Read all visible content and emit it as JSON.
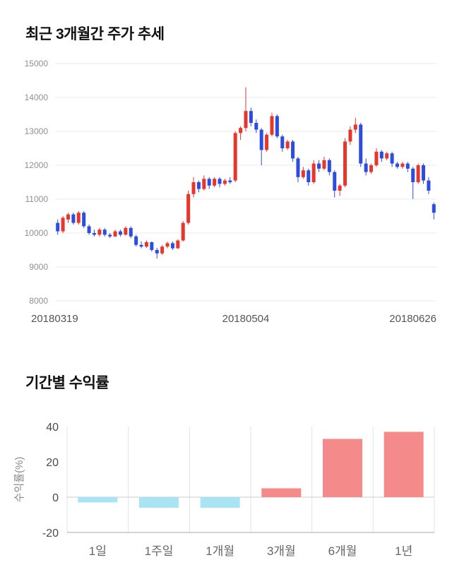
{
  "titles": {
    "price_trend": "최근 3개월간 주가 추세",
    "period_returns": "기간별 수익률"
  },
  "chart_data": [
    {
      "name": "price-candlestick",
      "type": "candlestick",
      "title": "최근 3개월간 주가 추세",
      "ylim": [
        8000,
        15000
      ],
      "yticks": [
        15000,
        14000,
        13000,
        12000,
        11000,
        10000,
        9000,
        8000
      ],
      "xtick_labels": [
        "20180319",
        "20180504",
        "20180626"
      ],
      "up_color": "#e8362c",
      "down_color": "#2d4de0",
      "grid_color": "#e8e8e8",
      "axis_text_color": "#909090",
      "xaxis_text_color": "#555555",
      "candles_ohlc": [
        [
          10300,
          10400,
          9950,
          10050
        ],
        [
          10050,
          10500,
          10000,
          10450
        ],
        [
          10400,
          10600,
          10300,
          10550
        ],
        [
          10550,
          10600,
          10250,
          10300
        ],
        [
          10300,
          10650,
          10250,
          10600
        ],
        [
          10600,
          10650,
          10150,
          10200
        ],
        [
          10200,
          10250,
          9950,
          10000
        ],
        [
          10000,
          10100,
          9900,
          9950
        ],
        [
          9950,
          10150,
          9900,
          10100
        ],
        [
          10100,
          10150,
          9900,
          9950
        ],
        [
          9950,
          10000,
          9850,
          9900
        ],
        [
          9900,
          10100,
          9880,
          10050
        ],
        [
          10050,
          10100,
          9900,
          9950
        ],
        [
          9950,
          10200,
          9930,
          10150
        ],
        [
          10150,
          10200,
          9850,
          9900
        ],
        [
          9900,
          9950,
          9600,
          9650
        ],
        [
          9650,
          9750,
          9550,
          9600
        ],
        [
          9600,
          9780,
          9560,
          9730
        ],
        [
          9730,
          9750,
          9450,
          9500
        ],
        [
          9500,
          9560,
          9250,
          9400
        ],
        [
          9400,
          9650,
          9350,
          9600
        ],
        [
          9600,
          9750,
          9550,
          9700
        ],
        [
          9700,
          9750,
          9500,
          9550
        ],
        [
          9550,
          9820,
          9530,
          9780
        ],
        [
          9780,
          10350,
          9750,
          10300
        ],
        [
          10300,
          11250,
          10250,
          11150
        ],
        [
          11150,
          11650,
          11050,
          11500
        ],
        [
          11500,
          11550,
          11200,
          11300
        ],
        [
          11300,
          11700,
          11250,
          11600
        ],
        [
          11600,
          11650,
          11300,
          11400
        ],
        [
          11400,
          11650,
          11350,
          11600
        ],
        [
          11600,
          11650,
          11350,
          11450
        ],
        [
          11450,
          11600,
          11400,
          11550
        ],
        [
          11550,
          11650,
          11450,
          11500
        ],
        [
          11550,
          13000,
          11500,
          12950
        ],
        [
          12950,
          13150,
          12750,
          13100
        ],
        [
          13100,
          14300,
          13000,
          13600
        ],
        [
          13600,
          13700,
          13150,
          13250
        ],
        [
          13250,
          13350,
          12950,
          13050
        ],
        [
          13050,
          13100,
          12000,
          12450
        ],
        [
          12450,
          12950,
          12400,
          12900
        ],
        [
          12900,
          13550,
          12850,
          13450
        ],
        [
          13450,
          13500,
          12800,
          12850
        ],
        [
          12850,
          12900,
          12400,
          12500
        ],
        [
          12500,
          12750,
          12450,
          12700
        ],
        [
          12700,
          12750,
          12100,
          12200
        ],
        [
          12200,
          12250,
          11500,
          11650
        ],
        [
          11650,
          11950,
          11600,
          11850
        ],
        [
          11850,
          11900,
          11400,
          11500
        ],
        [
          11500,
          12150,
          11450,
          12050
        ],
        [
          12050,
          12150,
          11800,
          11900
        ],
        [
          11900,
          12250,
          11850,
          12150
        ],
        [
          12150,
          12200,
          11700,
          11800
        ],
        [
          11800,
          11850,
          11050,
          11250
        ],
        [
          11250,
          11450,
          11100,
          11400
        ],
        [
          11400,
          12800,
          11350,
          12700
        ],
        [
          12700,
          13150,
          12600,
          13050
        ],
        [
          13050,
          13400,
          12950,
          13200
        ],
        [
          13200,
          13250,
          11950,
          12050
        ],
        [
          12050,
          12200,
          11700,
          11800
        ],
        [
          11800,
          12050,
          11750,
          12000
        ],
        [
          12000,
          12500,
          11950,
          12400
        ],
        [
          12400,
          12450,
          12100,
          12200
        ],
        [
          12200,
          12400,
          12150,
          12350
        ],
        [
          12350,
          12400,
          11950,
          12050
        ],
        [
          12050,
          12100,
          11900,
          11950
        ],
        [
          11950,
          12100,
          11900,
          12050
        ],
        [
          12050,
          12100,
          11800,
          11900
        ],
        [
          11900,
          11950,
          11000,
          11500
        ],
        [
          11500,
          12050,
          11450,
          12000
        ],
        [
          12000,
          12050,
          11450,
          11550
        ],
        [
          11550,
          11650,
          11150,
          11250
        ],
        [
          10850,
          10900,
          10400,
          10600
        ]
      ]
    },
    {
      "name": "period-returns",
      "type": "bar",
      "title": "기간별 수익률",
      "categories": [
        "1일",
        "1주일",
        "1개월",
        "3개월",
        "6개월",
        "1년"
      ],
      "values": [
        -3,
        -6,
        -6,
        5,
        33,
        37
      ],
      "ylabel": "수익률(%)",
      "ylim": [
        -20,
        40
      ],
      "yticks": [
        40,
        20,
        0,
        -20
      ],
      "positive_color": "#f58a8a",
      "negative_color": "#a8e4f4",
      "grid_color": "#e3e3e3",
      "zero_line_color": "#cccccc",
      "axis_line_color": "#aaaaaa",
      "axis_text_color": "#4a4a4a",
      "category_text_color": "#666666",
      "ylabel_color": "#888888"
    }
  ]
}
